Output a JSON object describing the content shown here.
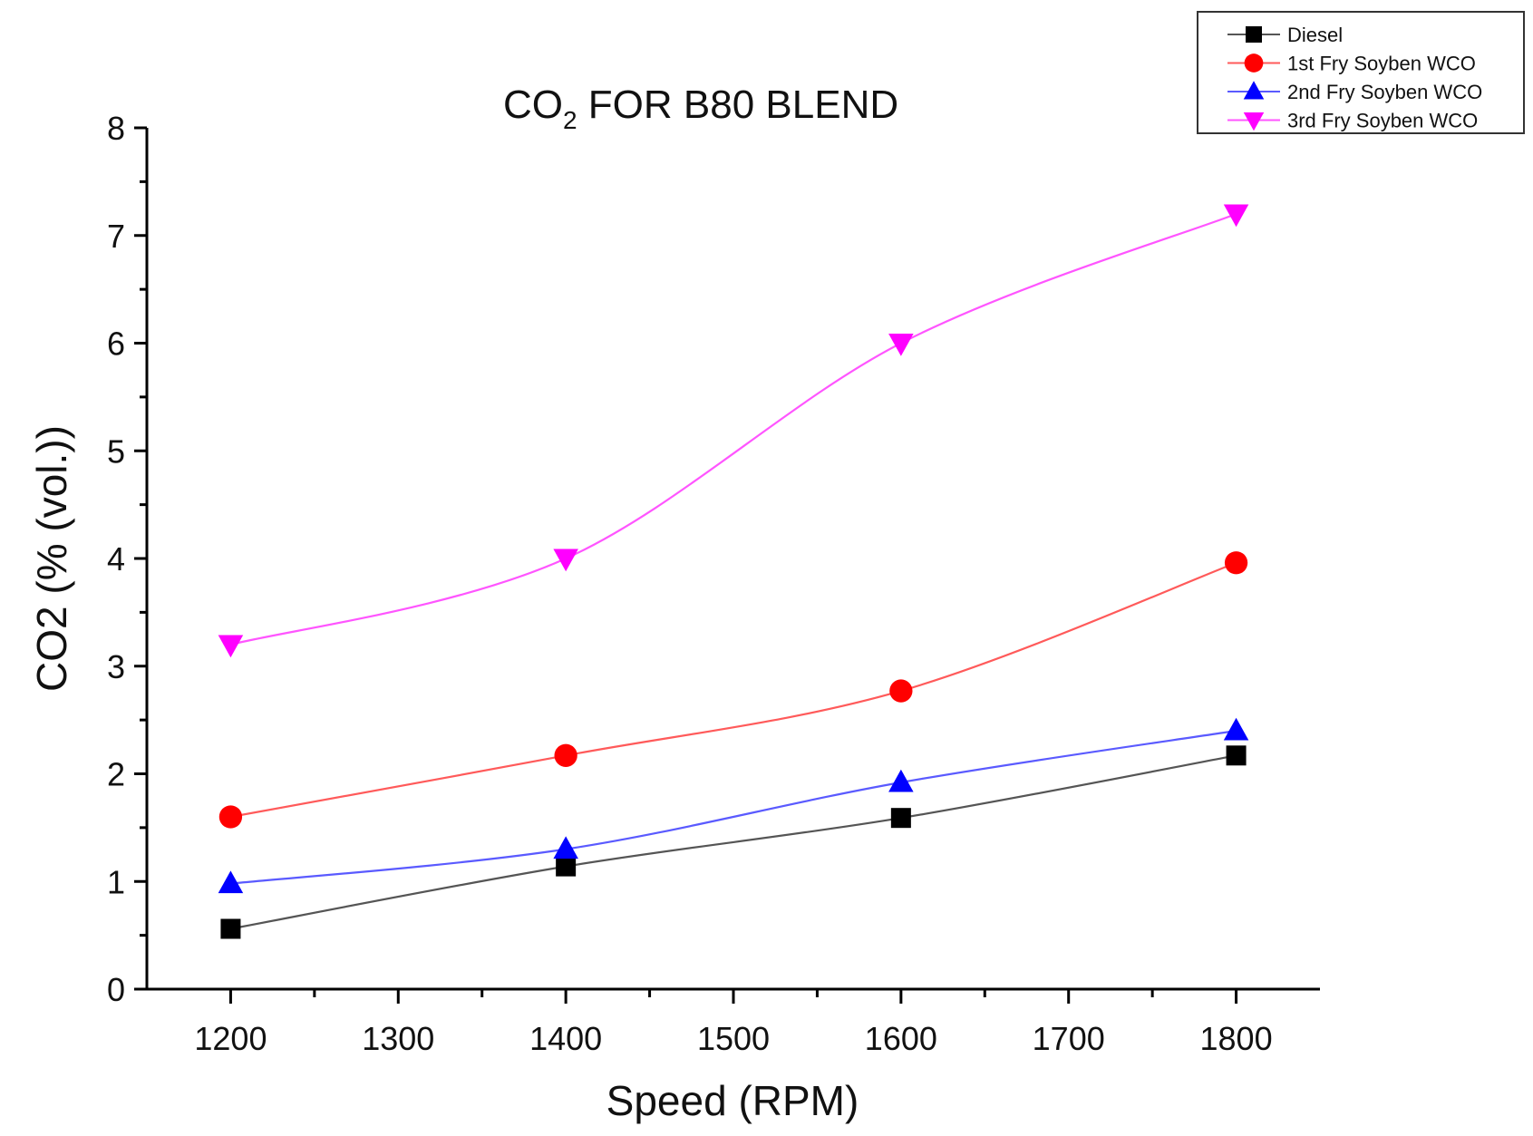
{
  "chart_data": {
    "type": "line",
    "title": {
      "prefix": "CO",
      "subscript": "2",
      "suffix": " FOR B80 BLEND"
    },
    "xlabel": "Speed (RPM)",
    "ylabel": "CO2 (% (vol.))",
    "xlim": [
      1150,
      1850
    ],
    "ylim": [
      0,
      8
    ],
    "xticks": [
      1200,
      1300,
      1400,
      1500,
      1600,
      1700,
      1800
    ],
    "yticks": [
      0,
      1,
      2,
      3,
      4,
      5,
      6,
      7,
      8
    ],
    "x": [
      1200,
      1400,
      1600,
      1800
    ],
    "legend_position": "top-right",
    "grid": false,
    "series": [
      {
        "name": "Diesel",
        "color": "#000000",
        "line_color": "#555555",
        "marker": "square",
        "values": [
          0.56,
          1.14,
          1.59,
          2.17
        ]
      },
      {
        "name": "1st Fry Soyben WCO",
        "color": "#ff0000",
        "line_color": "#ff5a5a",
        "marker": "circle",
        "values": [
          1.6,
          2.17,
          2.77,
          3.96
        ]
      },
      {
        "name": "2nd Fry Soyben WCO",
        "color": "#0000ff",
        "line_color": "#5a5aff",
        "marker": "triangle-up",
        "values": [
          0.98,
          1.3,
          1.92,
          2.4
        ]
      },
      {
        "name": "3rd Fry Soyben WCO",
        "color": "#ff00ff",
        "line_color": "#ff55ff",
        "marker": "triangle-down",
        "values": [
          3.2,
          4.0,
          6.0,
          7.2
        ]
      }
    ]
  }
}
